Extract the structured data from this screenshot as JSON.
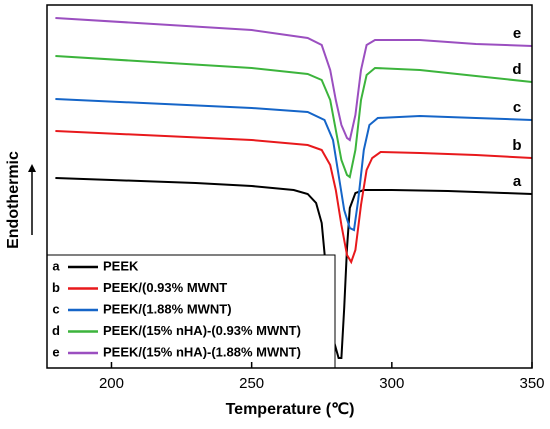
{
  "chart_data": {
    "type": "line",
    "xlabel": "Temperature (℃)",
    "ylabel": "Endothermic",
    "xlim": [
      177,
      350
    ],
    "xticks": [
      200,
      250,
      300,
      350
    ],
    "ylim": [
      0,
      363
    ],
    "legend": "lower left",
    "series": [
      {
        "name": "PEEK",
        "label": "a",
        "color": "#000000",
        "x": [
          180,
          200,
          230,
          250,
          265,
          270,
          273,
          275,
          276,
          277,
          279,
          281,
          282,
          283,
          284,
          285,
          287,
          290,
          300,
          320,
          340,
          350
        ],
        "values": [
          190,
          188,
          185,
          182,
          178,
          174,
          165,
          145,
          115,
          80,
          30,
          10,
          10,
          60,
          120,
          160,
          175,
          178,
          178,
          177,
          175,
          174
        ]
      },
      {
        "name": "PEEK/(0.93% MWNT",
        "label": "b",
        "color": "#e8191c",
        "x": [
          180,
          250,
          270,
          275,
          278,
          280,
          282,
          284,
          285.5,
          287,
          289,
          291,
          293,
          296,
          310,
          330,
          350
        ],
        "values": [
          237,
          228,
          223,
          218,
          203,
          178,
          143,
          113,
          106,
          118,
          163,
          198,
          210,
          216,
          215,
          213,
          210
        ]
      },
      {
        "name": "PEEK/(1.88% MWNT)",
        "label": "c",
        "color": "#1565c8",
        "x": [
          180,
          250,
          270,
          276,
          279,
          281,
          283,
          285,
          286.5,
          288,
          290,
          292,
          295,
          310,
          330,
          350
        ],
        "values": [
          269,
          260,
          256,
          248,
          228,
          193,
          158,
          140,
          138,
          168,
          218,
          243,
          250,
          252,
          250,
          248
        ]
      },
      {
        "name": "PEEK/(15% nHA)-(0.93% MWNT)",
        "label": "d",
        "color": "#3cb43c",
        "x": [
          180,
          250,
          270,
          275,
          278,
          280,
          282,
          284,
          285,
          287,
          289,
          291,
          294,
          310,
          330,
          350
        ],
        "values": [
          312,
          300,
          294,
          288,
          268,
          238,
          208,
          193,
          191,
          218,
          268,
          293,
          300,
          298,
          292,
          286
        ]
      },
      {
        "name": "PEEK/(15% nHA)-(1.88% MWNT)",
        "label": "e",
        "color": "#9b4fc0",
        "x": [
          180,
          250,
          270,
          275,
          278,
          280,
          282,
          284,
          285,
          287,
          289,
          291,
          294,
          310,
          330,
          350
        ],
        "values": [
          350,
          338,
          330,
          323,
          298,
          268,
          243,
          230,
          228,
          253,
          298,
          323,
          328,
          328,
          324,
          322
        ]
      }
    ]
  }
}
